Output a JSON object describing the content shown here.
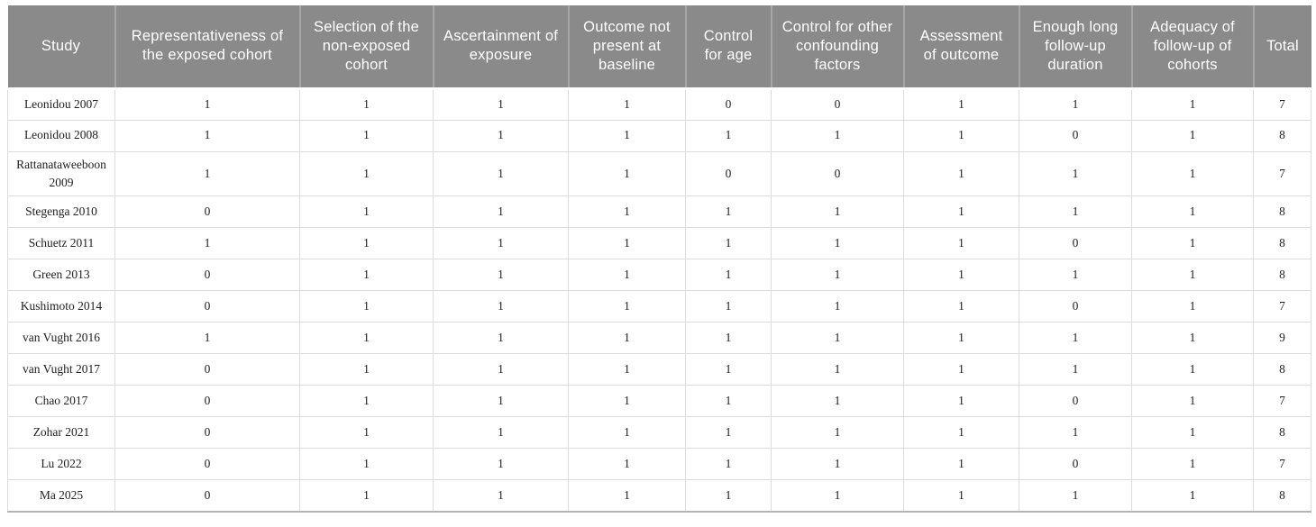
{
  "table": {
    "columns": [
      "Study",
      "Representativeness of the exposed cohort",
      "Selection of the non-exposed cohort",
      "Ascertainment of exposure",
      "Outcome not present at baseline",
      "Control for age",
      "Control for other confounding factors",
      "Assessment of outcome",
      "Enough long follow-up duration",
      "Adequacy of follow-up of cohorts",
      "Total"
    ],
    "rows": [
      {
        "study": "Leonidou 2007",
        "values": [
          1,
          1,
          1,
          1,
          0,
          0,
          1,
          1,
          1
        ],
        "total": 7
      },
      {
        "study": "Leonidou 2008",
        "values": [
          1,
          1,
          1,
          1,
          1,
          1,
          1,
          0,
          1
        ],
        "total": 8
      },
      {
        "study": "Rattanataweeboon 2009",
        "values": [
          1,
          1,
          1,
          1,
          0,
          0,
          1,
          1,
          1
        ],
        "total": 7
      },
      {
        "study": "Stegenga 2010",
        "values": [
          0,
          1,
          1,
          1,
          1,
          1,
          1,
          1,
          1
        ],
        "total": 8
      },
      {
        "study": "Schuetz 2011",
        "values": [
          1,
          1,
          1,
          1,
          1,
          1,
          1,
          0,
          1
        ],
        "total": 8
      },
      {
        "study": "Green 2013",
        "values": [
          0,
          1,
          1,
          1,
          1,
          1,
          1,
          1,
          1
        ],
        "total": 8
      },
      {
        "study": "Kushimoto 2014",
        "values": [
          0,
          1,
          1,
          1,
          1,
          1,
          1,
          0,
          1
        ],
        "total": 7
      },
      {
        "study": "van Vught 2016",
        "values": [
          1,
          1,
          1,
          1,
          1,
          1,
          1,
          1,
          1
        ],
        "total": 9
      },
      {
        "study": "van Vught 2017",
        "values": [
          0,
          1,
          1,
          1,
          1,
          1,
          1,
          1,
          1
        ],
        "total": 8
      },
      {
        "study": "Chao 2017",
        "values": [
          0,
          1,
          1,
          1,
          1,
          1,
          1,
          0,
          1
        ],
        "total": 7
      },
      {
        "study": "Zohar 2021",
        "values": [
          0,
          1,
          1,
          1,
          1,
          1,
          1,
          1,
          1
        ],
        "total": 8
      },
      {
        "study": "Lu 2022",
        "values": [
          0,
          1,
          1,
          1,
          1,
          1,
          1,
          0,
          1
        ],
        "total": 7
      },
      {
        "study": "Ma 2025",
        "values": [
          0,
          1,
          1,
          1,
          1,
          1,
          1,
          1,
          1
        ],
        "total": 8
      }
    ],
    "colors": {
      "header_bg": "#8a8a8a",
      "header_text": "#ffffff",
      "header_divider": "#a6a6a6",
      "body_text": "#212121",
      "grid_line": "#dcdcdc",
      "bottom_border": "#b3b3b3"
    }
  }
}
